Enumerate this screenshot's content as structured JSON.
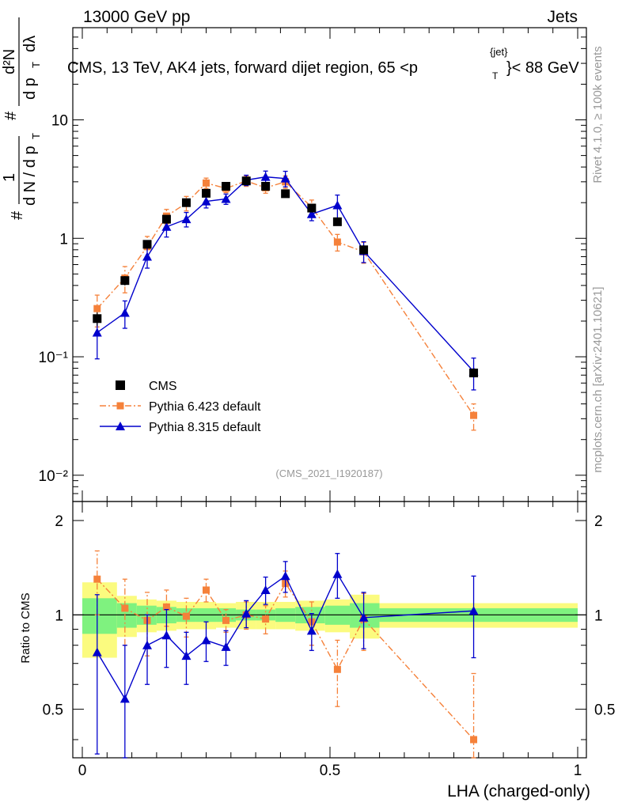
{
  "header": {
    "left": "13000 GeV pp",
    "right": "Jets"
  },
  "main_panel": {
    "title_prefix": "CMS, 13 TeV, AK4 jets, forward dijet region, 65 <p",
    "title_sub": "T",
    "title_sup": "{jet}",
    "title_suffix": "}< 88 GeV",
    "ylabel_hash": "#",
    "ylabel_one": "1",
    "ylabel_denom": "d N / d p",
    "ylabel_denom_sub": "T",
    "ylabel_num2": "d²N",
    "ylabel_denom2": "d p",
    "ylabel_denom2_sub": "T",
    "ylabel_dlambda": "dλ",
    "analysis_id": "(CMS_2021_I1920187)"
  },
  "side_labels": {
    "rivet": "Rivet 4.1.0, ≥ 100k events",
    "mcplots": "mcplots.cern.ch [arXiv:2401.10621]"
  },
  "ratio_panel": {
    "ylabel": "Ratio to CMS"
  },
  "xaxis": {
    "label": "LHA (charged-only)",
    "ticks": [
      "0",
      "0.5",
      "1"
    ]
  },
  "colors": {
    "cms": "#000000",
    "pythia6": "#f5813a",
    "pythia8": "#0000cc",
    "band_inner": "#7ff27f",
    "band_outer": "#fbfb7f"
  },
  "chart_data": {
    "type": "scatter",
    "title": "CMS, 13 TeV, AK4 jets, forward dijet region, 65 < p_T^{jet} < 88 GeV",
    "xlabel": "LHA (charged-only)",
    "ylabel": "(1/dN/dp_T) d²N/(dp_T dλ)",
    "xlim": [
      0,
      1
    ],
    "ylim_main": [
      0.006,
      60
    ],
    "yscale_main": "log",
    "ylim_ratio": [
      0.35,
      2.3
    ],
    "yscale_ratio": "log",
    "main_yticks": [
      "10⁻²",
      "10⁻¹",
      "1",
      "10"
    ],
    "ratio_yticks": [
      "0.5",
      "1",
      "2"
    ],
    "legend": [
      "CMS",
      "Pythia 6.423 default",
      "Pythia 8.315 default"
    ],
    "legend_position": "center-left",
    "bin_edges": [
      0,
      0.07,
      0.11,
      0.15,
      0.19,
      0.23,
      0.27,
      0.31,
      0.35,
      0.39,
      0.43,
      0.49,
      0.54,
      0.6,
      1.0
    ],
    "x": [
      0.03,
      0.086,
      0.131,
      0.17,
      0.21,
      0.25,
      0.29,
      0.331,
      0.37,
      0.41,
      0.463,
      0.515,
      0.568,
      0.79
    ],
    "series": [
      {
        "name": "CMS",
        "values": [
          0.21,
          0.44,
          0.89,
          1.45,
          2.0,
          2.4,
          2.75,
          3.05,
          2.75,
          2.38,
          1.8,
          1.38,
          0.8,
          0.073
        ],
        "band_inner": [
          0.13,
          0.09,
          0.07,
          0.06,
          0.05,
          0.05,
          0.05,
          0.04,
          0.04,
          0.05,
          0.06,
          0.07,
          0.09,
          0.05
        ],
        "band_outer": [
          0.27,
          0.15,
          0.12,
          0.11,
          0.1,
          0.1,
          0.09,
          0.1,
          0.1,
          0.1,
          0.11,
          0.12,
          0.16,
          0.09
        ]
      },
      {
        "name": "Pythia 6.423 default",
        "values": [
          0.255,
          0.462,
          0.85,
          1.54,
          1.98,
          2.93,
          2.64,
          3.05,
          2.67,
          3.0,
          1.83,
          0.93,
          0.77,
          0.032
        ],
        "ratio": [
          1.3,
          1.05,
          0.96,
          1.06,
          0.99,
          1.2,
          0.96,
          1.0,
          0.97,
          1.26,
          0.95,
          0.67,
          0.97,
          0.4
        ],
        "ratio_err": [
          0.3,
          0.25,
          0.22,
          0.14,
          0.14,
          0.1,
          0.08,
          0.1,
          0.1,
          0.12,
          0.15,
          0.16,
          0.2,
          0.25
        ]
      },
      {
        "name": "Pythia 8.315 default",
        "values": [
          0.16,
          0.235,
          0.7,
          1.25,
          1.45,
          2.05,
          2.15,
          3.1,
          3.3,
          3.2,
          1.6,
          1.9,
          0.78,
          0.075
        ],
        "ratio": [
          0.76,
          0.54,
          0.8,
          0.86,
          0.74,
          0.83,
          0.79,
          1.01,
          1.2,
          1.33,
          0.89,
          1.35,
          0.98,
          1.03
        ],
        "ratio_err": [
          0.4,
          0.26,
          0.2,
          0.18,
          0.14,
          0.12,
          0.1,
          0.1,
          0.12,
          0.15,
          0.12,
          0.22,
          0.2,
          0.3
        ]
      }
    ]
  }
}
